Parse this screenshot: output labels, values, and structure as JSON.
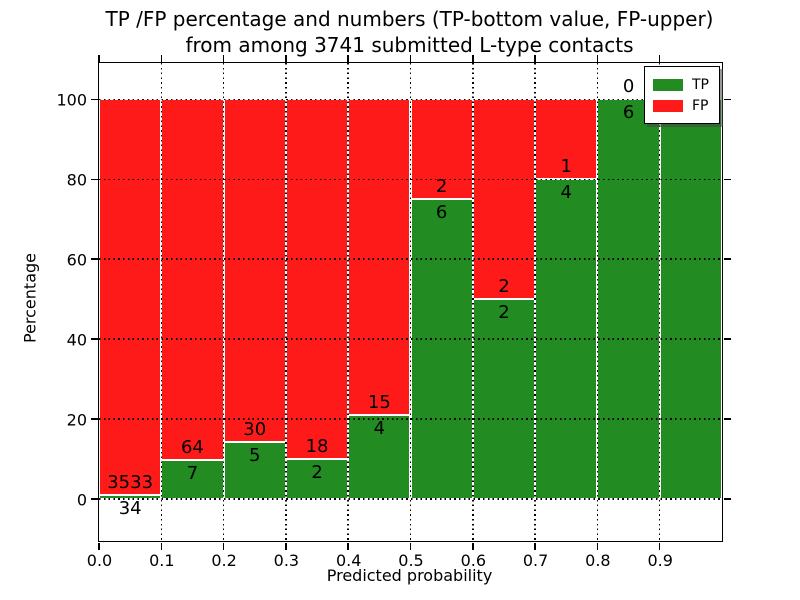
{
  "title": {
    "line1": "TP /FP percentage and numbers (TP-bottom value, FP-upper)",
    "line2": "from among 3741 submitted L-type contacts"
  },
  "x_axis": {
    "label": "Predicted probability",
    "tick_labels": [
      "0.0",
      "0.1",
      "0.2",
      "0.3",
      "0.4",
      "0.5",
      "0.6",
      "0.7",
      "0.8",
      "0.9"
    ],
    "tick_values": [
      0.0,
      0.1,
      0.2,
      0.3,
      0.4,
      0.5,
      0.6,
      0.7,
      0.8,
      0.9
    ]
  },
  "y_axis": {
    "label": "Percentage",
    "tick_labels": [
      "0",
      "20",
      "40",
      "60",
      "80",
      "100"
    ],
    "tick_values": [
      0,
      20,
      40,
      60,
      80,
      100
    ]
  },
  "legend": {
    "items": [
      {
        "label": "TP",
        "color": "#228B22"
      },
      {
        "label": "FP",
        "color": "#ff1a1a"
      }
    ]
  },
  "colors": {
    "tp": "#228B22",
    "fp": "#ff1a1a",
    "bar_edge": "#ffffff",
    "grid": "#000000",
    "background": "#ffffff"
  },
  "chart_data": {
    "type": "bar",
    "stacked": true,
    "title": "TP /FP percentage and numbers (TP-bottom value, FP-upper) from among 3741 submitted L-type contacts",
    "xlabel": "Predicted probability",
    "ylabel": "Percentage",
    "xlim": [
      0.0,
      1.0
    ],
    "ylim": [
      -10.5,
      109.1
    ],
    "grid": true,
    "legend_position": "upper right",
    "total_contacts": 3741,
    "bin_edges": [
      0.0,
      0.1,
      0.2,
      0.3,
      0.4,
      0.5,
      0.6,
      0.7,
      0.8,
      0.9,
      1.0
    ],
    "series_names": [
      "TP",
      "FP"
    ],
    "bars": [
      {
        "x0": 0.0,
        "x1": 0.1,
        "tp_count": 34,
        "fp_count": 3533,
        "tp_pct": 0.95,
        "fp_pct": 99.05,
        "tp_label": "34",
        "fp_label": "3533"
      },
      {
        "x0": 0.1,
        "x1": 0.2,
        "tp_count": 7,
        "fp_count": 64,
        "tp_pct": 9.86,
        "fp_pct": 90.14,
        "tp_label": "7",
        "fp_label": "64"
      },
      {
        "x0": 0.2,
        "x1": 0.3,
        "tp_count": 5,
        "fp_count": 30,
        "tp_pct": 14.29,
        "fp_pct": 85.71,
        "tp_label": "5",
        "fp_label": "30"
      },
      {
        "x0": 0.3,
        "x1": 0.4,
        "tp_count": 2,
        "fp_count": 18,
        "tp_pct": 10.0,
        "fp_pct": 90.0,
        "tp_label": "2",
        "fp_label": "18"
      },
      {
        "x0": 0.4,
        "x1": 0.5,
        "tp_count": 4,
        "fp_count": 15,
        "tp_pct": 21.05,
        "fp_pct": 78.95,
        "tp_label": "4",
        "fp_label": "15"
      },
      {
        "x0": 0.5,
        "x1": 0.6,
        "tp_count": 6,
        "fp_count": 2,
        "tp_pct": 75.0,
        "fp_pct": 25.0,
        "tp_label": "6",
        "fp_label": "2"
      },
      {
        "x0": 0.6,
        "x1": 0.7,
        "tp_count": 2,
        "fp_count": 2,
        "tp_pct": 50.0,
        "fp_pct": 50.0,
        "tp_label": "2",
        "fp_label": "2"
      },
      {
        "x0": 0.7,
        "x1": 0.8,
        "tp_count": 4,
        "fp_count": 1,
        "tp_pct": 80.0,
        "fp_pct": 20.0,
        "tp_label": "4",
        "fp_label": "1"
      },
      {
        "x0": 0.8,
        "x1": 0.9,
        "tp_count": 6,
        "fp_count": 0,
        "tp_pct": 100.0,
        "fp_pct": 0.0,
        "tp_label": "6",
        "fp_label": "0"
      },
      {
        "x0": 0.9,
        "x1": 1.0,
        "tp_count": 6,
        "fp_count": 0,
        "tp_pct": 100.0,
        "fp_pct": 0.0,
        "tp_label": "6",
        "fp_label": "0"
      }
    ]
  }
}
